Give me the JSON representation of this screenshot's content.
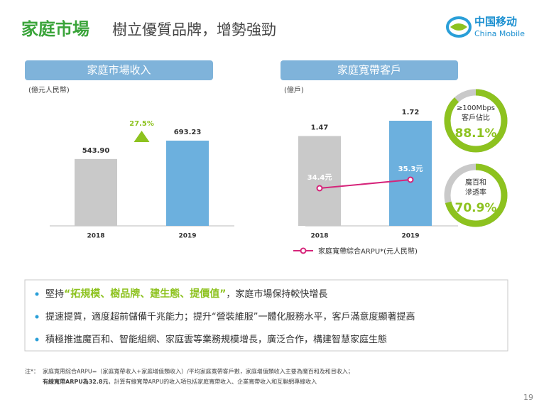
{
  "header": {
    "title": "家庭市場",
    "subtitle": "樹立優質品牌，增勢強勁"
  },
  "logo": {
    "cn": "中国移动",
    "en": "China Mobile"
  },
  "chart_data": [
    {
      "type": "bar",
      "title": "家庭市場收入",
      "unit_label": "(億元人民幣)",
      "categories": [
        "2018",
        "2019"
      ],
      "values": [
        543.9,
        693.23
      ],
      "value_labels": [
        "543.90",
        "693.23"
      ],
      "colors": [
        "#c9c9c9",
        "#6cb0de"
      ],
      "annotation": "27.5%"
    },
    {
      "type": "bar",
      "title": "家庭寬帶客戶",
      "unit_label": "(億戶)",
      "categories": [
        "2018",
        "2019"
      ],
      "values": [
        1.47,
        1.72
      ],
      "colors": [
        "#c9c9c9",
        "#6cb0de"
      ],
      "series": [
        {
          "name": "家庭寬帶綜合ARPU*(元人民幣)",
          "color": "#d6247a",
          "values": [
            34.4,
            35.3
          ],
          "value_labels": [
            "34.4元",
            "35.3元"
          ]
        }
      ]
    }
  ],
  "kpis": [
    {
      "label_lines": [
        "≥100Mbps",
        "客戶佔比"
      ],
      "value": 88.1,
      "value_label": "88.1%"
    },
    {
      "label_lines": [
        "魔百和",
        "滲透率"
      ],
      "value": 70.9,
      "value_label": "70.9%"
    }
  ],
  "bullets": [
    [
      "堅持",
      "“拓規模、樹品牌、建生態、提價值”",
      "，家庭市場保持較快增長"
    ],
    [
      "提速提質，適度超前儲備千兆能力；提升“營裝維服”一體化服務水平，客戶滿意度顯著提高"
    ],
    [
      "積極推進魔百和、智能組網、家庭雲等業務規模增長，廣泛合作，構建智慧家庭生態"
    ]
  ],
  "footnote": {
    "label": "注*：",
    "line1": "家庭寬帶綜合ARPU=（家庭寬帶收入+家庭增值類收入）/平均家庭寬帶客戶數，家庭增值類收入主要為魔百和及和目收入；",
    "line2_bold": "有線寬帶ARPU為32.8元",
    "line2": "，計算有線寬帶ARPU的收入項包括家庭寬帶收入、企業寬帶收入和互聯網專線收入"
  },
  "page_number": "19"
}
